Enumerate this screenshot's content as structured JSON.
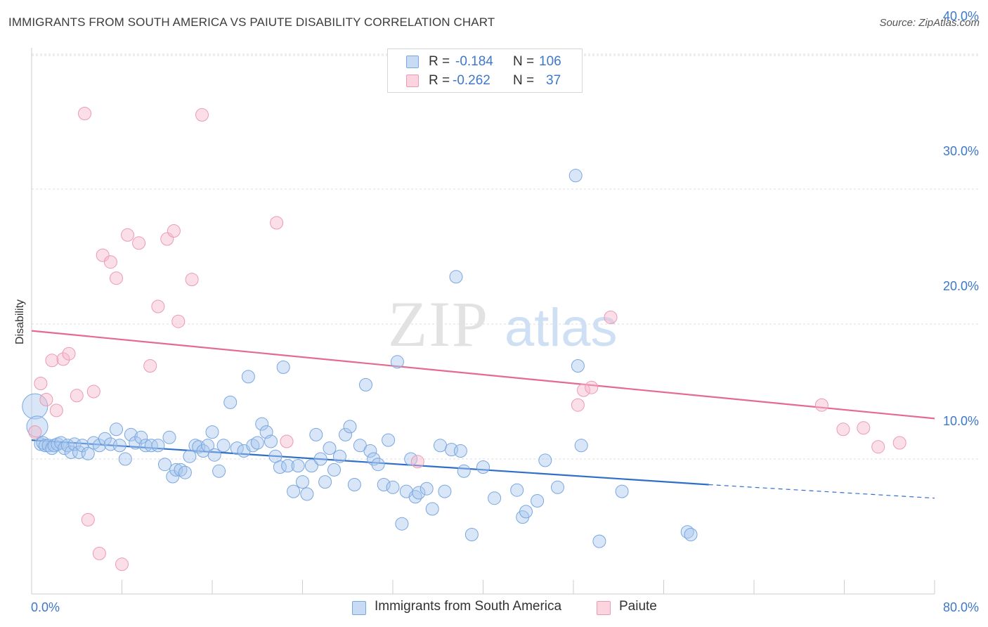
{
  "title": "IMMIGRANTS FROM SOUTH AMERICA VS PAIUTE DISABILITY CORRELATION CHART",
  "source": "Source: ZipAtlas.com",
  "watermark": {
    "zip": "ZIP",
    "atlas": "atlas"
  },
  "legend_stats": [
    {
      "r_label": "R =",
      "r_value": "-0.184",
      "n_label": "N =",
      "n_value": "106",
      "color": "#a9c7ee"
    },
    {
      "r_label": "R =",
      "r_value": "-0.262",
      "n_label": "N =",
      "n_value": "37",
      "color": "#f5b8cb"
    }
  ],
  "colors": {
    "blue_fill": "rgba(168,199,238,0.45)",
    "blue_stroke": "#7aa7e0",
    "blue_line": "#2f6fca",
    "pink_fill": "rgba(246,184,203,0.45)",
    "pink_stroke": "#ec9ab3",
    "pink_line": "#e46a93",
    "axis_label": "#3d78c9",
    "grid": "#dddddd"
  },
  "chart_data": {
    "type": "scatter",
    "title": "IMMIGRANTS FROM SOUTH AMERICA VS PAIUTE DISABILITY CORRELATION CHART",
    "xlabel": "",
    "ylabel": "Disability",
    "xlim": [
      0,
      80
    ],
    "ylim": [
      0,
      42
    ],
    "x_tick_labels": [
      "0.0%",
      "80.0%"
    ],
    "y_ticks": [
      10,
      20,
      30,
      40
    ],
    "y_tick_labels": [
      "10.0%",
      "20.0%",
      "30.0%",
      "40.0%"
    ],
    "grid": true,
    "legend_position": "bottom",
    "series": [
      {
        "name": "Immigrants from South America",
        "color": "#7aa7e0",
        "trend": {
          "x0": 0,
          "y0": 11.4,
          "x1": 60,
          "y1": 8.1,
          "dash_to_x": 80,
          "dash_to_y": 7.1
        },
        "points": [
          [
            0.3,
            13.9
          ],
          [
            0.5,
            12.4
          ],
          [
            0.8,
            11.1
          ],
          [
            1.0,
            11.2
          ],
          [
            1.2,
            11.0
          ],
          [
            1.5,
            11.0
          ],
          [
            1.8,
            10.8
          ],
          [
            2.0,
            11.0
          ],
          [
            2.3,
            11.1
          ],
          [
            2.6,
            11.2
          ],
          [
            2.9,
            10.8
          ],
          [
            3.2,
            11.0
          ],
          [
            3.5,
            10.5
          ],
          [
            3.8,
            11.1
          ],
          [
            4.2,
            10.5
          ],
          [
            4.5,
            11.0
          ],
          [
            5.0,
            10.4
          ],
          [
            5.5,
            11.2
          ],
          [
            6.0,
            11.0
          ],
          [
            6.5,
            11.5
          ],
          [
            7.0,
            11.1
          ],
          [
            7.5,
            12.2
          ],
          [
            7.8,
            11.0
          ],
          [
            8.3,
            10.0
          ],
          [
            8.8,
            11.8
          ],
          [
            9.2,
            11.2
          ],
          [
            9.7,
            11.6
          ],
          [
            10.1,
            11.0
          ],
          [
            10.6,
            11.0
          ],
          [
            11.2,
            11.0
          ],
          [
            11.8,
            9.6
          ],
          [
            12.2,
            11.6
          ],
          [
            12.5,
            8.7
          ],
          [
            12.8,
            9.2
          ],
          [
            13.2,
            9.2
          ],
          [
            13.6,
            9.0
          ],
          [
            14.0,
            10.2
          ],
          [
            14.5,
            11.0
          ],
          [
            14.8,
            10.9
          ],
          [
            15.2,
            10.6
          ],
          [
            15.6,
            11.0
          ],
          [
            16.0,
            12.0
          ],
          [
            16.2,
            10.3
          ],
          [
            16.6,
            9.1
          ],
          [
            17.0,
            11.0
          ],
          [
            17.6,
            14.2
          ],
          [
            18.2,
            10.8
          ],
          [
            18.8,
            10.6
          ],
          [
            19.2,
            16.1
          ],
          [
            19.6,
            11.0
          ],
          [
            20.0,
            11.2
          ],
          [
            20.4,
            12.6
          ],
          [
            20.8,
            12.0
          ],
          [
            21.2,
            11.3
          ],
          [
            21.6,
            10.2
          ],
          [
            22.0,
            9.4
          ],
          [
            22.3,
            16.8
          ],
          [
            22.7,
            9.5
          ],
          [
            23.2,
            7.6
          ],
          [
            23.6,
            9.5
          ],
          [
            24.0,
            8.3
          ],
          [
            24.4,
            7.4
          ],
          [
            24.8,
            9.5
          ],
          [
            25.2,
            11.8
          ],
          [
            25.6,
            10.0
          ],
          [
            26.0,
            8.3
          ],
          [
            26.4,
            10.8
          ],
          [
            26.8,
            9.2
          ],
          [
            27.3,
            10.2
          ],
          [
            27.8,
            11.8
          ],
          [
            28.2,
            12.4
          ],
          [
            28.6,
            8.1
          ],
          [
            29.1,
            11.0
          ],
          [
            29.6,
            15.5
          ],
          [
            30.0,
            10.6
          ],
          [
            30.3,
            10.0
          ],
          [
            30.7,
            9.6
          ],
          [
            31.2,
            8.1
          ],
          [
            31.6,
            11.4
          ],
          [
            32.0,
            7.9
          ],
          [
            32.4,
            17.2
          ],
          [
            32.8,
            5.2
          ],
          [
            33.2,
            7.6
          ],
          [
            33.6,
            10.0
          ],
          [
            34.0,
            7.2
          ],
          [
            34.3,
            7.5
          ],
          [
            35.0,
            7.8
          ],
          [
            35.5,
            6.3
          ],
          [
            36.2,
            11.0
          ],
          [
            36.6,
            7.6
          ],
          [
            37.2,
            10.7
          ],
          [
            37.6,
            23.5
          ],
          [
            38.0,
            10.6
          ],
          [
            38.3,
            9.1
          ],
          [
            39.0,
            4.4
          ],
          [
            40.0,
            9.4
          ],
          [
            41.0,
            7.1
          ],
          [
            43.0,
            7.7
          ],
          [
            43.5,
            5.7
          ],
          [
            43.8,
            6.1
          ],
          [
            44.8,
            6.9
          ],
          [
            45.5,
            9.9
          ],
          [
            46.6,
            7.9
          ],
          [
            48.2,
            31.0
          ],
          [
            48.4,
            16.9
          ],
          [
            50.3,
            3.9
          ],
          [
            52.3,
            7.6
          ],
          [
            58.1,
            4.6
          ],
          [
            58.4,
            4.4
          ],
          [
            48.7,
            11.0
          ]
        ]
      },
      {
        "name": "Paiute",
        "color": "#ec9ab3",
        "trend": {
          "x0": 0,
          "y0": 19.5,
          "x1": 80,
          "y1": 13.0
        },
        "points": [
          [
            0.3,
            12.0
          ],
          [
            0.8,
            15.6
          ],
          [
            1.3,
            14.4
          ],
          [
            1.8,
            17.3
          ],
          [
            2.2,
            13.6
          ],
          [
            2.8,
            17.4
          ],
          [
            3.3,
            17.8
          ],
          [
            4.0,
            14.7
          ],
          [
            4.7,
            35.6
          ],
          [
            5.0,
            5.5
          ],
          [
            5.5,
            15.0
          ],
          [
            6.0,
            3.0
          ],
          [
            6.3,
            25.1
          ],
          [
            7.0,
            24.6
          ],
          [
            7.5,
            23.4
          ],
          [
            8.0,
            2.2
          ],
          [
            8.5,
            26.6
          ],
          [
            9.5,
            26.0
          ],
          [
            10.5,
            16.9
          ],
          [
            11.2,
            21.3
          ],
          [
            12.0,
            26.3
          ],
          [
            12.6,
            26.9
          ],
          [
            13.0,
            20.2
          ],
          [
            14.2,
            23.3
          ],
          [
            15.1,
            35.5
          ],
          [
            21.7,
            27.5
          ],
          [
            22.6,
            11.3
          ],
          [
            34.2,
            9.8
          ],
          [
            48.4,
            14.0
          ],
          [
            48.9,
            15.1
          ],
          [
            49.6,
            15.3
          ],
          [
            51.3,
            20.5
          ],
          [
            70.0,
            14.0
          ],
          [
            71.9,
            12.2
          ],
          [
            73.7,
            12.3
          ],
          [
            75.0,
            10.9
          ],
          [
            76.9,
            11.2
          ]
        ]
      }
    ]
  },
  "bottom_legend": [
    {
      "label": "Immigrants from South America"
    },
    {
      "label": "Paiute"
    }
  ]
}
